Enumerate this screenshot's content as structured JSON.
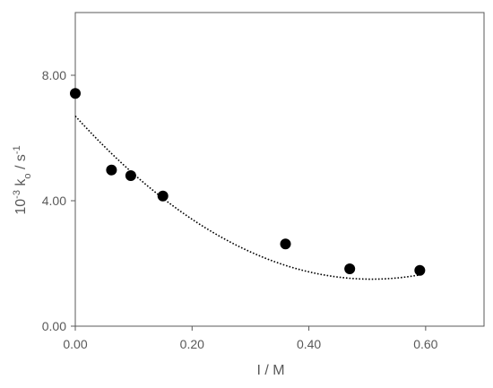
{
  "chart_data": {
    "type": "scatter",
    "xlabel": "I / M",
    "ylabel": {
      "prefix": "10",
      "exponent1": "-3",
      "middle": " k",
      "subscript": "o",
      "unit": " / s",
      "exponent2": "-1"
    },
    "xlim": [
      0,
      0.7
    ],
    "ylim": [
      0,
      10
    ],
    "x_ticks": [
      {
        "value": 0.0,
        "label": "0.00"
      },
      {
        "value": 0.2,
        "label": "0.20"
      },
      {
        "value": 0.4,
        "label": "0.40"
      },
      {
        "value": 0.6,
        "label": "0.60"
      }
    ],
    "y_ticks": [
      {
        "value": 0.0,
        "label": "0.00"
      },
      {
        "value": 4.0,
        "label": "4.00"
      },
      {
        "value": 8.0,
        "label": "8.00"
      }
    ],
    "grid": false,
    "points": [
      {
        "x": 0.0,
        "y": 7.42
      },
      {
        "x": 0.062,
        "y": 4.98
      },
      {
        "x": 0.095,
        "y": 4.8
      },
      {
        "x": 0.15,
        "y": 4.15
      },
      {
        "x": 0.36,
        "y": 2.62
      },
      {
        "x": 0.47,
        "y": 1.83
      },
      {
        "x": 0.59,
        "y": 1.78
      }
    ],
    "fit_curve": {
      "style": "dotted",
      "type": "quadratic",
      "coefficients": [
        6.7,
        -20.5,
        20.2
      ],
      "x_range": [
        0,
        0.59
      ]
    },
    "colors": {
      "marker": "#000000",
      "axis": "#595959",
      "text": "#595959",
      "fit": "#000000"
    }
  }
}
